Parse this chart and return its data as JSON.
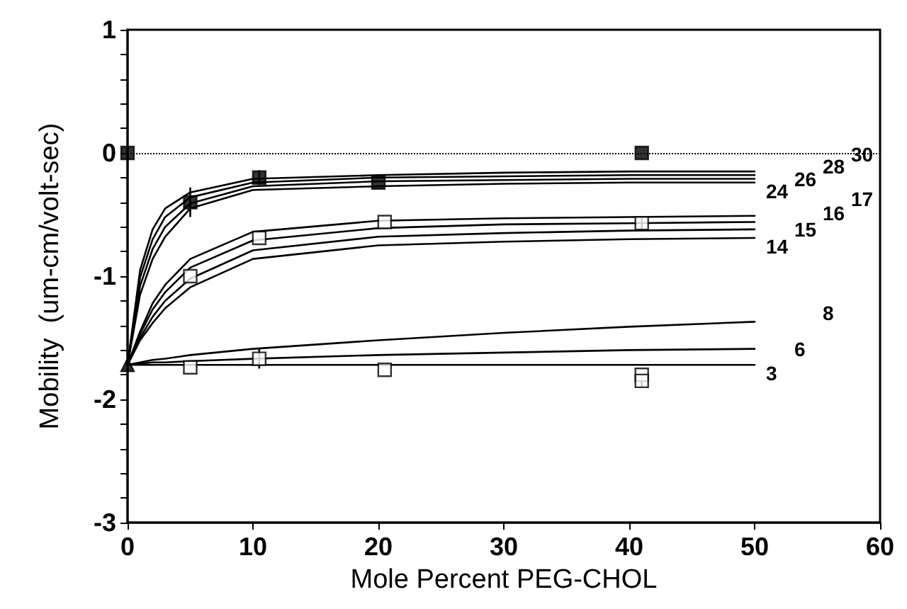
{
  "chart_data": {
    "type": "line",
    "xlabel": "Mole Percent PEG-CHOL",
    "ylabel": "Mobility  (um-cm/volt-sec)",
    "xlim": [
      0,
      60
    ],
    "xticks": [
      0,
      10,
      20,
      30,
      40,
      50,
      60
    ],
    "ylim": [
      -3,
      1
    ],
    "yticks": [
      -3,
      {
        "value": -2.8,
        "label": null
      },
      {
        "value": -2.6,
        "label": null
      },
      {
        "value": -2.4,
        "label": null
      },
      {
        "value": -2.2,
        "label": null
      },
      -2,
      {
        "value": -1.8,
        "label": null
      },
      {
        "value": -1.6,
        "label": null
      },
      {
        "value": -1.4,
        "label": null
      },
      {
        "value": -1.2,
        "label": null
      },
      -1,
      {
        "value": -0.8,
        "label": null
      },
      {
        "value": -0.6,
        "label": null
      },
      {
        "value": -0.4,
        "label": null
      },
      {
        "value": -0.2,
        "label": null
      },
      0,
      {
        "value": 0.2,
        "label": null
      },
      {
        "value": 0.4,
        "label": null
      },
      {
        "value": 0.6,
        "label": null
      },
      {
        "value": 0.8,
        "label": null
      },
      1
    ],
    "grid": false,
    "legend": false,
    "line_style": "solid",
    "ref_lines": [
      {
        "axis": "y",
        "value": 0,
        "line_style": "dotted",
        "color": "#000000"
      }
    ],
    "series": [
      {
        "name": "3",
        "marker": "none",
        "color": "#000000",
        "x": [
          0,
          1,
          2,
          3,
          5,
          10,
          20,
          30,
          40,
          50
        ],
        "values": [
          -1.72,
          -1.72,
          -1.72,
          -1.72,
          -1.72,
          -1.72,
          -1.72,
          -1.72,
          -1.72,
          -1.72
        ]
      },
      {
        "name": "6",
        "marker": "none",
        "color": "#000000",
        "x": [
          0,
          1,
          2,
          3,
          5,
          10,
          20,
          30,
          40,
          50
        ],
        "values": [
          -1.72,
          -1.71,
          -1.7,
          -1.7,
          -1.69,
          -1.67,
          -1.64,
          -1.62,
          -1.6,
          -1.59
        ]
      },
      {
        "name": "8",
        "marker": "none",
        "color": "#000000",
        "x": [
          0,
          1,
          2,
          3,
          5,
          10,
          20,
          30,
          40,
          50
        ],
        "values": [
          -1.72,
          -1.7,
          -1.68,
          -1.67,
          -1.64,
          -1.59,
          -1.52,
          -1.46,
          -1.41,
          -1.37
        ]
      },
      {
        "name": "14",
        "marker": "none",
        "color": "#000000",
        "x": [
          0,
          1,
          2,
          3,
          5,
          10,
          20,
          30,
          40,
          50
        ],
        "values": [
          -1.72,
          -1.52,
          -1.38,
          -1.26,
          -1.09,
          -0.86,
          -0.75,
          -0.72,
          -0.7,
          -0.69
        ]
      },
      {
        "name": "15",
        "marker": "none",
        "color": "#000000",
        "x": [
          0,
          1,
          2,
          3,
          5,
          10,
          20,
          30,
          40,
          50
        ],
        "values": [
          -1.72,
          -1.5,
          -1.33,
          -1.2,
          -1.02,
          -0.79,
          -0.68,
          -0.65,
          -0.63,
          -0.62
        ]
      },
      {
        "name": "16",
        "marker": "none",
        "color": "#000000",
        "x": [
          0,
          1,
          2,
          3,
          5,
          10,
          20,
          30,
          40,
          50
        ],
        "values": [
          -1.72,
          -1.47,
          -1.27,
          -1.13,
          -0.93,
          -0.71,
          -0.61,
          -0.58,
          -0.57,
          -0.56
        ]
      },
      {
        "name": "17",
        "marker": "none",
        "color": "#000000",
        "x": [
          0,
          1,
          2,
          3,
          5,
          10,
          20,
          30,
          40,
          50
        ],
        "values": [
          -1.72,
          -1.45,
          -1.22,
          -1.07,
          -0.86,
          -0.64,
          -0.55,
          -0.53,
          -0.52,
          -0.51
        ]
      },
      {
        "name": "24",
        "marker": "none",
        "color": "#000000",
        "x": [
          0,
          1,
          2,
          3,
          5,
          10,
          20,
          30,
          40,
          50
        ],
        "values": [
          -1.72,
          -1.15,
          -0.86,
          -0.68,
          -0.45,
          -0.3,
          -0.27,
          -0.25,
          -0.24,
          -0.24
        ]
      },
      {
        "name": "26",
        "marker": "none",
        "color": "#000000",
        "x": [
          0,
          1,
          2,
          3,
          5,
          10,
          20,
          30,
          40,
          50
        ],
        "values": [
          -1.72,
          -1.08,
          -0.78,
          -0.6,
          -0.41,
          -0.27,
          -0.23,
          -0.22,
          -0.21,
          -0.21
        ]
      },
      {
        "name": "28",
        "marker": "none",
        "color": "#000000",
        "x": [
          0,
          1,
          2,
          3,
          5,
          10,
          20,
          30,
          40,
          50
        ],
        "values": [
          -1.72,
          -1.01,
          -0.7,
          -0.52,
          -0.36,
          -0.24,
          -0.2,
          -0.19,
          -0.18,
          -0.18
        ]
      },
      {
        "name": "30",
        "marker": "none",
        "color": "#000000",
        "x": [
          0,
          1,
          2,
          3,
          5,
          10,
          20,
          30,
          40,
          50
        ],
        "values": [
          -1.72,
          -0.95,
          -0.62,
          -0.45,
          -0.32,
          -0.21,
          -0.18,
          -0.16,
          -0.15,
          -0.15
        ]
      },
      {
        "type": "scatter",
        "marker": "square",
        "color": "#000000",
        "x": [
          0,
          5,
          10.5,
          20,
          41
        ],
        "values": [
          0,
          -0.4,
          -0.2,
          -0.24,
          0
        ],
        "errors": [
          null,
          0.12,
          0.06,
          null,
          null
        ]
      },
      {
        "type": "scatter",
        "marker": "square",
        "color": "#ffffff",
        "x": [
          5,
          10.5,
          20.5,
          41,
          5,
          10.5,
          20.5,
          41,
          41
        ],
        "values": [
          -1.0,
          -0.69,
          -0.56,
          -0.57,
          -1.74,
          -1.67,
          -1.76,
          -1.8,
          -1.85
        ],
        "errors": [
          null,
          null,
          null,
          0.05,
          null,
          0.08,
          null,
          null,
          0.05
        ]
      },
      {
        "type": "scatter",
        "marker": "triangle",
        "color": "#000000",
        "x": [
          0
        ],
        "values": [
          -1.72
        ]
      }
    ]
  }
}
